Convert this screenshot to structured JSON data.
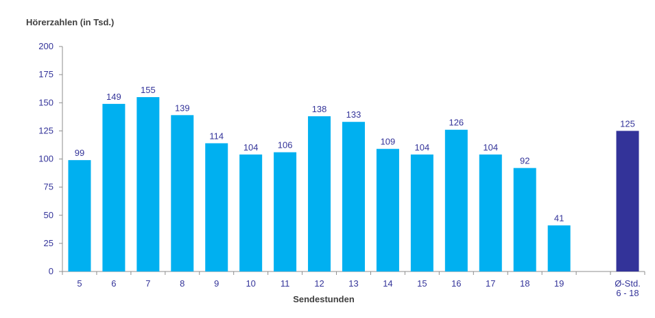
{
  "chart_data": {
    "type": "bar",
    "ylabel": "Hörerzahlen (in Tsd.)",
    "xlabel": "Sendestunden",
    "ylim": [
      0,
      200
    ],
    "yticks": [
      0,
      25,
      50,
      75,
      100,
      125,
      150,
      175,
      200
    ],
    "categories": [
      "5",
      "6",
      "7",
      "8",
      "9",
      "10",
      "11",
      "12",
      "13",
      "14",
      "15",
      "16",
      "17",
      "18",
      "19",
      "",
      "Ø-Std.\n6 - 18"
    ],
    "values": [
      99,
      149,
      155,
      139,
      114,
      104,
      106,
      138,
      133,
      109,
      104,
      126,
      104,
      92,
      41,
      null,
      125
    ],
    "highlight_index": 16,
    "colors": {
      "bar": "#00b0f0",
      "highlight": "#333399",
      "label": "#333399",
      "axis_title": "#404040"
    },
    "grid": false
  }
}
